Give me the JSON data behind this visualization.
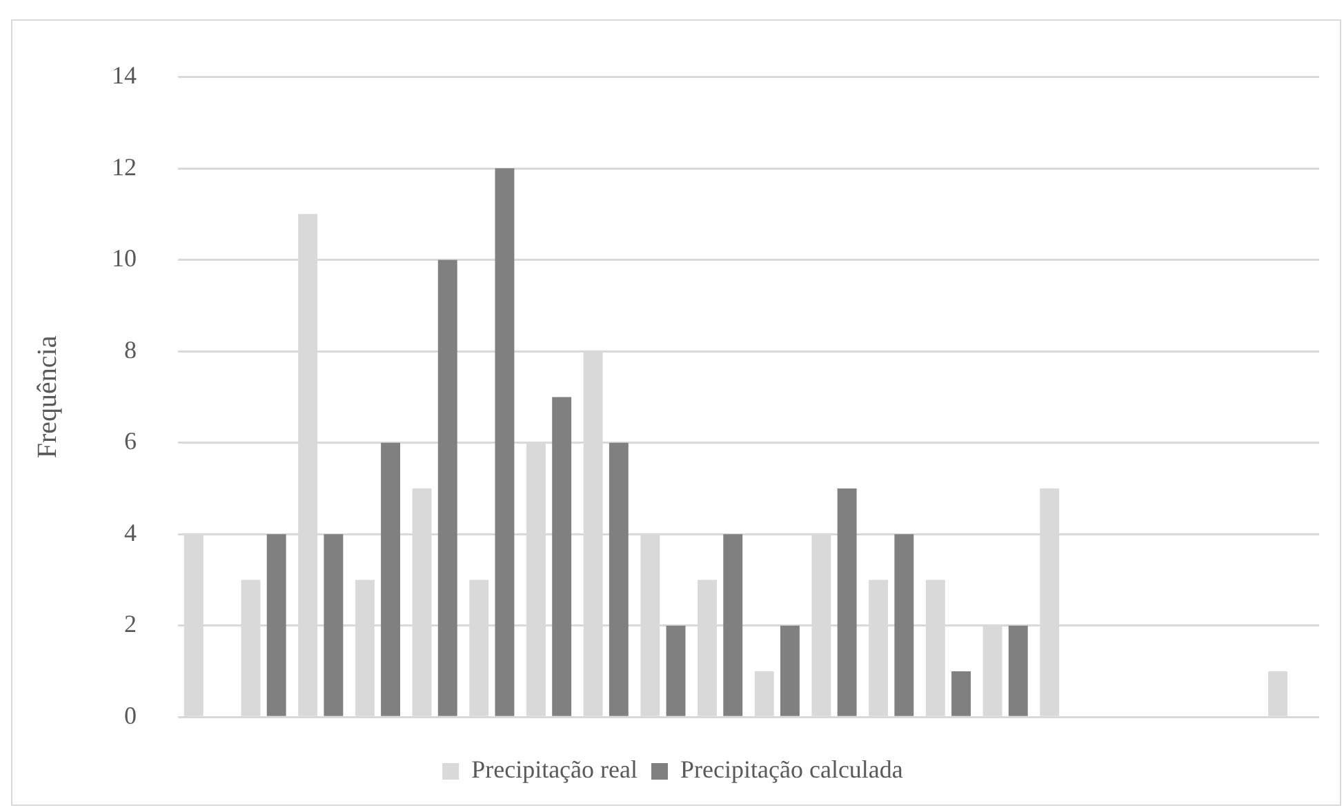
{
  "chart_data": {
    "type": "bar",
    "ylabel": "Frequência",
    "categories": [
      null,
      null,
      null,
      null,
      null,
      null,
      null,
      null,
      null,
      null,
      null,
      null,
      null,
      null,
      null,
      null,
      null,
      null,
      null,
      null
    ],
    "series": [
      {
        "name": "Precipitação real",
        "color": "#d9d9d9",
        "values": [
          4,
          3,
          11,
          3,
          5,
          3,
          6,
          8,
          4,
          3,
          1,
          4,
          3,
          3,
          2,
          5,
          0,
          0,
          0,
          1
        ]
      },
      {
        "name": "Precipitação calculada",
        "color": "#808080",
        "values": [
          0,
          4,
          4,
          6,
          10,
          12,
          7,
          6,
          2,
          4,
          2,
          5,
          4,
          1,
          2,
          0,
          0,
          0,
          0,
          0
        ]
      }
    ],
    "ylim": [
      0,
      14
    ],
    "yticks": [
      0,
      2,
      4,
      6,
      8,
      10,
      12,
      14
    ],
    "grid": "y",
    "legend": "bottom"
  }
}
